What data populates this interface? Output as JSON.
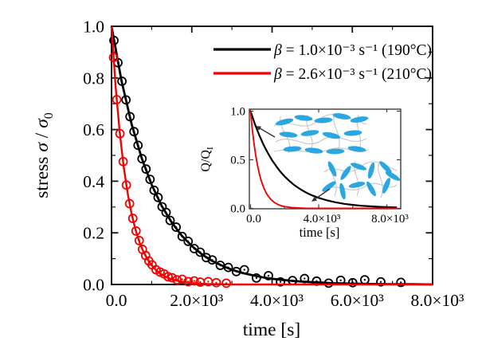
{
  "figure": {
    "background": "#ffffff",
    "frame_color": "#111111"
  },
  "chart_data": {
    "type": "line+scatter",
    "title": "",
    "xlabel": "time [s]",
    "ylabel_segments": [
      {
        "t": "stress ",
        "style": "plain"
      },
      {
        "t": "σ",
        "style": "italic"
      },
      {
        "t": " / ",
        "style": "plain"
      },
      {
        "t": "σ",
        "style": "italic"
      },
      {
        "t": "0",
        "style": "sub"
      }
    ],
    "xlim": [
      0,
      8000
    ],
    "ylim": [
      0,
      1.0
    ],
    "x_major_ticks": [
      0,
      2000,
      4000,
      6000,
      8000
    ],
    "x_tick_labels": [
      "0.0",
      "2.0×10³",
      "4.0×10³",
      "6.0×10³",
      "8.0×10³"
    ],
    "x_minor_ticks": [
      1000,
      3000,
      5000,
      7000
    ],
    "y_major_ticks": [
      0,
      0.2,
      0.4,
      0.6,
      0.8,
      1.0
    ],
    "y_tick_labels": [
      "0.0",
      "0.2",
      "0.4",
      "0.6",
      "0.8",
      "1.0"
    ],
    "y_minor_ticks": [
      0.1,
      0.3,
      0.5,
      0.7,
      0.9
    ],
    "grid": false,
    "legend_position": "top-right-inside",
    "series": [
      {
        "name": "beta-1.0e-3",
        "color": "#000000",
        "label_segments": [
          {
            "t": "β",
            "style": "italic"
          },
          {
            "t": " = 1.0×10⁻³ s⁻¹ (190°C)",
            "style": "plain"
          }
        ],
        "curve": {
          "x": [
            0,
            250,
            500,
            750,
            1000,
            1250,
            1500,
            1750,
            2000,
            2250,
            2500,
            2750,
            3000,
            3250,
            3500,
            3750,
            4000,
            4250,
            4500,
            4750,
            5000,
            5250,
            5500,
            5750,
            6000,
            6500,
            7000,
            7500,
            8000
          ],
          "y": [
            1.0,
            0.788,
            0.621,
            0.49,
            0.386,
            0.304,
            0.24,
            0.189,
            0.149,
            0.117,
            0.092,
            0.073,
            0.057,
            0.045,
            0.036,
            0.028,
            0.022,
            0.018,
            0.014,
            0.011,
            0.009,
            0.007,
            0.005,
            0.004,
            0.003,
            0.002,
            0.001,
            0.001,
            0.0
          ]
        },
        "scatter": {
          "x": [
            60,
            160,
            260,
            360,
            460,
            560,
            660,
            760,
            860,
            960,
            1060,
            1160,
            1260,
            1360,
            1460,
            1610,
            1760,
            1910,
            2060,
            2210,
            2360,
            2510,
            2710,
            2910,
            3110,
            3310,
            3610,
            3910,
            4210,
            4510,
            4810,
            5110,
            5410,
            5710,
            6010,
            6310,
            6710,
            7210
          ],
          "y": [
            0.945,
            0.859,
            0.787,
            0.715,
            0.65,
            0.592,
            0.539,
            0.487,
            0.447,
            0.407,
            0.365,
            0.337,
            0.301,
            0.279,
            0.248,
            0.222,
            0.186,
            0.167,
            0.139,
            0.125,
            0.104,
            0.095,
            0.074,
            0.066,
            0.05,
            0.057,
            0.025,
            0.034,
            0.01,
            0.015,
            0.023,
            0.013,
            0.005,
            0.016,
            0.007,
            0.018,
            0.01,
            0.008
          ]
        }
      },
      {
        "name": "beta-2.6e-3",
        "color": "#f40000",
        "label_segments": [
          {
            "t": "β",
            "style": "italic"
          },
          {
            "t": " = 2.6×10⁻³ s⁻¹ (210°C)",
            "style": "plain"
          }
        ],
        "curve": {
          "x": [
            0,
            100,
            200,
            300,
            400,
            500,
            600,
            700,
            800,
            900,
            1000,
            1100,
            1200,
            1300,
            1400,
            1500,
            1600,
            1800,
            2000,
            2200,
            2400,
            2600,
            2800,
            3000,
            3500,
            4000,
            5000,
            6000,
            7000,
            8000
          ],
          "y": [
            1.0,
            0.771,
            0.595,
            0.459,
            0.354,
            0.273,
            0.211,
            0.162,
            0.125,
            0.097,
            0.074,
            0.057,
            0.044,
            0.034,
            0.026,
            0.02,
            0.016,
            0.009,
            0.006,
            0.003,
            0.002,
            0.001,
            0.001,
            0.0,
            0.0,
            0.0,
            0.0,
            0.0,
            0.0,
            0.0
          ]
        },
        "scatter": {
          "x": [
            50,
            130,
            210,
            290,
            370,
            450,
            530,
            610,
            690,
            770,
            850,
            930,
            1010,
            1110,
            1210,
            1310,
            1410,
            1510,
            1630,
            1760,
            1910,
            2060,
            2210,
            2410,
            2610,
            2860
          ],
          "y": [
            0.879,
            0.716,
            0.584,
            0.476,
            0.385,
            0.313,
            0.256,
            0.207,
            0.17,
            0.136,
            0.112,
            0.091,
            0.076,
            0.057,
            0.048,
            0.041,
            0.03,
            0.026,
            0.018,
            0.02,
            0.011,
            0.014,
            0.009,
            0.011,
            0.007,
            0.005
          ]
        }
      }
    ],
    "inset": {
      "type": "line",
      "xlabel": "time [s]",
      "ylabel_segments": [
        {
          "t": "Q/Q",
          "style": "plain"
        },
        {
          "t": "I",
          "style": "sub"
        }
      ],
      "xlim": [
        0,
        8800
      ],
      "ylim": [
        0,
        1.0
      ],
      "x_major_ticks": [
        0,
        4000,
        8000
      ],
      "x_tick_labels": [
        "0.0",
        "4.0×10³",
        "8.0×10³"
      ],
      "x_minor_ticks": [
        2000,
        6000
      ],
      "y_major_ticks": [
        0,
        0.5,
        1.0
      ],
      "y_tick_labels": [
        "0.0",
        "0.5",
        "1.0"
      ],
      "series": [
        {
          "name": "slow-relaxation-190C",
          "color": "#000000",
          "x": [
            0,
            250,
            500,
            750,
            1000,
            1250,
            1500,
            1750,
            2000,
            2250,
            2500,
            2750,
            3000,
            3250,
            3500,
            3750,
            4000,
            4500,
            5000,
            5500,
            6000,
            6500,
            7000,
            7500,
            8000,
            8600
          ],
          "y": [
            1.0,
            0.87,
            0.757,
            0.659,
            0.574,
            0.499,
            0.435,
            0.378,
            0.329,
            0.287,
            0.249,
            0.217,
            0.189,
            0.164,
            0.143,
            0.125,
            0.108,
            0.082,
            0.062,
            0.047,
            0.036,
            0.027,
            0.021,
            0.016,
            0.012,
            0.009
          ]
        },
        {
          "name": "fast-relaxation-210C",
          "color": "#f40000",
          "x": [
            0,
            100,
            200,
            300,
            400,
            500,
            600,
            700,
            800,
            900,
            1000,
            1200,
            1400,
            1600,
            1800,
            2000,
            2400,
            2800,
            3200,
            4000,
            5000,
            6000,
            7000,
            8000,
            8600
          ],
          "y": [
            1.0,
            0.819,
            0.67,
            0.549,
            0.449,
            0.368,
            0.301,
            0.247,
            0.202,
            0.165,
            0.135,
            0.091,
            0.061,
            0.041,
            0.027,
            0.018,
            0.008,
            0.004,
            0.002,
            0.001,
            0.0,
            0.0,
            0.0,
            0.0,
            0.0
          ]
        }
      ],
      "illustrations": [
        {
          "name": "aligned-mesogen-network"
        },
        {
          "name": "isotropic-mesogen-network"
        }
      ],
      "mesogen_color": "#2aa7e0",
      "chain_color": "#c6c6c6"
    }
  }
}
